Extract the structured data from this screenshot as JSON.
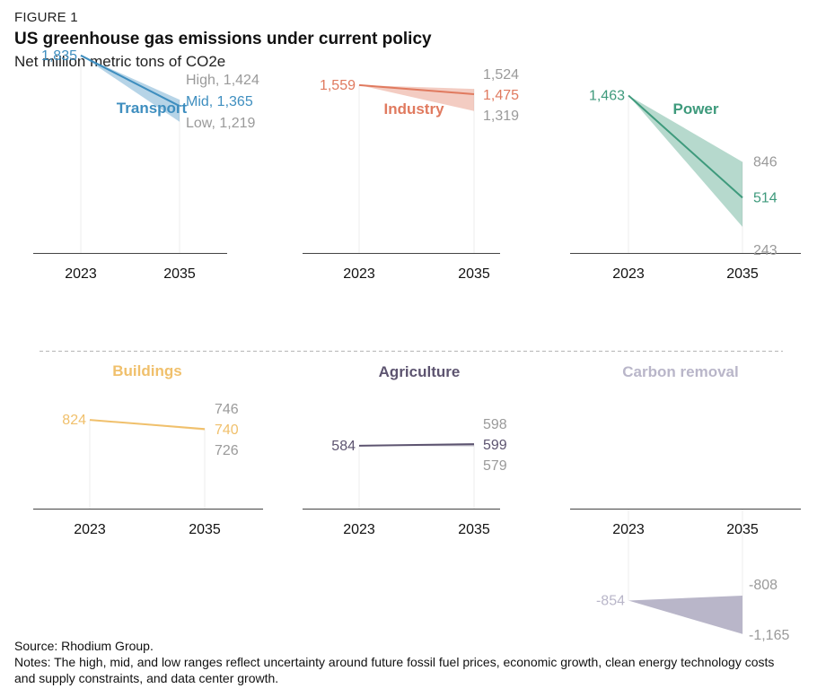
{
  "header": {
    "figure_label": "FIGURE 1",
    "title": "US greenhouse gas emissions under current policy",
    "subtitle": "Net million metric tons of CO2e"
  },
  "footer": {
    "source": "Source: Rhodium Group.",
    "notes": "Notes: The high, mid, and low ranges reflect uncertainty around future fossil fuel prices, economic growth, clean energy technology costs and supply constraints, and data center growth."
  },
  "colors": {
    "transport": "#3e8ebf",
    "industry": "#e07a5f",
    "power": "#3e9a7c",
    "buildings": "#f0c06c",
    "agriculture": "#5d5470",
    "carbon_removal": "#b9b6c9",
    "muted_label": "#9a9a9a",
    "axis": "#444444",
    "divider": "#b5b5b5"
  },
  "chart_data": [
    {
      "type": "area",
      "title": "Transport",
      "x": [
        "2023",
        "2035"
      ],
      "series": [
        {
          "name": "Mid",
          "values": [
            1835,
            1365
          ]
        },
        {
          "name": "High",
          "values": [
            1835,
            1424
          ]
        },
        {
          "name": "Low",
          "values": [
            1835,
            1219
          ]
        }
      ],
      "labels": {
        "start": "1,835",
        "high": "High, 1,424",
        "mid": "Mid, 1,365",
        "low": "Low, 1,219"
      }
    },
    {
      "type": "area",
      "title": "Industry",
      "x": [
        "2023",
        "2035"
      ],
      "series": [
        {
          "values": [
            1559,
            1475
          ]
        },
        {
          "values": [
            1559,
            1524
          ]
        },
        {
          "values": [
            1559,
            1319
          ]
        }
      ],
      "labels": {
        "start": "1,559",
        "high": "1,524",
        "mid": "1,475",
        "low": "1,319"
      }
    },
    {
      "type": "area",
      "title": "Power",
      "x": [
        "2023",
        "2035"
      ],
      "series": [
        {
          "values": [
            1463,
            514
          ]
        },
        {
          "values": [
            1463,
            846
          ]
        },
        {
          "values": [
            1463,
            243
          ]
        }
      ],
      "labels": {
        "start": "1,463",
        "high": "846",
        "mid": "514",
        "low": "243"
      }
    },
    {
      "type": "area",
      "title": "Buildings",
      "x": [
        "2023",
        "2035"
      ],
      "series": [
        {
          "values": [
            824,
            740
          ]
        },
        {
          "values": [
            824,
            746
          ]
        },
        {
          "values": [
            824,
            726
          ]
        }
      ],
      "labels": {
        "start": "824",
        "high": "746",
        "mid": "740",
        "low": "726"
      }
    },
    {
      "type": "area",
      "title": "Agriculture",
      "x": [
        "2023",
        "2035"
      ],
      "series": [
        {
          "values": [
            584,
            599
          ]
        },
        {
          "values": [
            584,
            598
          ]
        },
        {
          "values": [
            584,
            579
          ]
        }
      ],
      "labels": {
        "start": "584",
        "high": "598",
        "mid": "599",
        "low": "579"
      }
    },
    {
      "type": "area",
      "title": "Carbon removal",
      "x": [
        "2023",
        "2035"
      ],
      "series": [
        {
          "values": [
            -854,
            -808
          ]
        },
        {
          "values": [
            -854,
            -1165
          ]
        }
      ],
      "labels": {
        "start": "-854",
        "high": "-808",
        "low": "-1,165"
      }
    }
  ]
}
